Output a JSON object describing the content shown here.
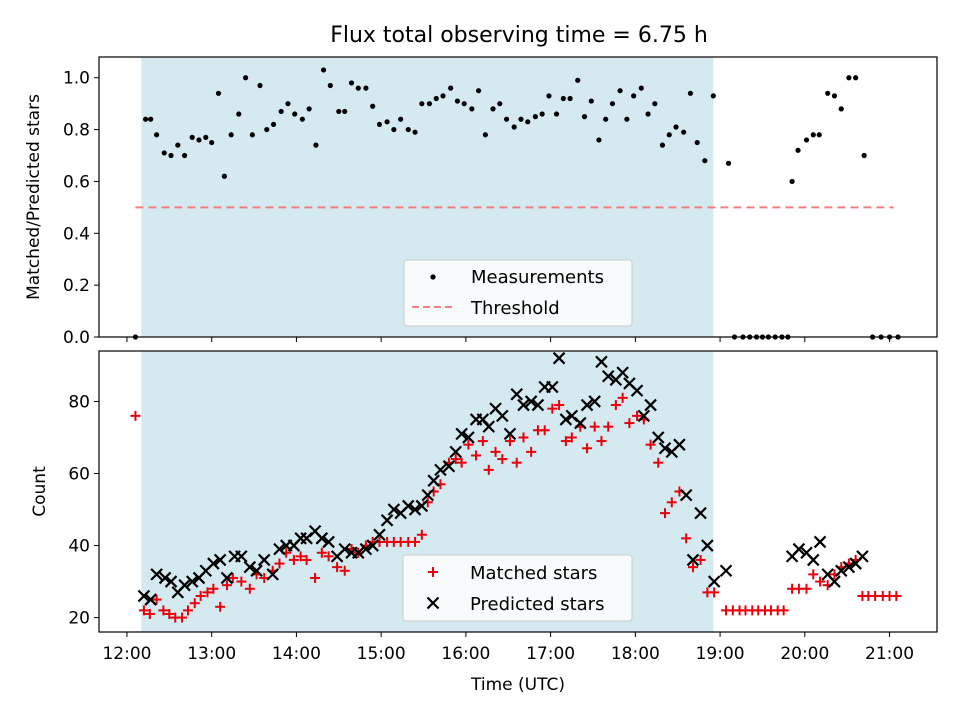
{
  "title": "Flux total observing time = 6.75 h",
  "colors": {
    "shade": "#d4eaf0",
    "measurement": "#000000",
    "threshold": "#f08080",
    "matched": "#e8000b",
    "predicted": "#000000"
  },
  "chart_data": [
    {
      "type": "scatter",
      "name": "ratio-panel",
      "ylabel": "Matched/Predicted stars",
      "ylim": [
        0,
        1.08
      ],
      "yticks": [
        0.0,
        0.2,
        0.4,
        0.6,
        0.8,
        1.0
      ],
      "ytick_labels": [
        "0.0",
        "0.2",
        "0.4",
        "0.6",
        "0.8",
        "1.0"
      ],
      "observing_window": [
        12.17,
        18.92
      ],
      "threshold": {
        "value": 0.5,
        "x_range": [
          12.1,
          21.05
        ]
      },
      "legend": {
        "position": "lower-center",
        "entries": [
          "Measurements",
          "Threshold"
        ]
      },
      "series": [
        {
          "name": "Measurements",
          "marker": "dot",
          "x": [
            12.1,
            12.22,
            12.28,
            12.35,
            12.44,
            12.52,
            12.6,
            12.68,
            12.77,
            12.85,
            12.93,
            13.0,
            13.08,
            13.15,
            13.23,
            13.32,
            13.4,
            13.48,
            13.57,
            13.65,
            13.73,
            13.82,
            13.9,
            13.98,
            14.07,
            14.15,
            14.23,
            14.32,
            14.4,
            14.5,
            14.57,
            14.65,
            14.73,
            14.82,
            14.9,
            14.98,
            15.07,
            15.15,
            15.23,
            15.32,
            15.4,
            15.48,
            15.57,
            15.65,
            15.73,
            15.82,
            15.9,
            15.98,
            16.07,
            16.15,
            16.23,
            16.32,
            16.4,
            16.48,
            16.57,
            16.65,
            16.73,
            16.82,
            16.9,
            16.98,
            17.07,
            17.15,
            17.23,
            17.32,
            17.4,
            17.48,
            17.57,
            17.65,
            17.73,
            17.82,
            17.9,
            17.98,
            18.07,
            18.15,
            18.23,
            18.32,
            18.4,
            18.48,
            18.57,
            18.65,
            18.73,
            18.82,
            18.92,
            19.1,
            19.17,
            19.27,
            19.35,
            19.43,
            19.5,
            19.57,
            19.65,
            19.73,
            19.8,
            19.85,
            19.92,
            20.02,
            20.1,
            20.17,
            20.27,
            20.35,
            20.43,
            20.52,
            20.6,
            20.7,
            20.8,
            20.9,
            21.0,
            21.1
          ],
          "y": [
            0.0,
            0.84,
            0.84,
            0.78,
            0.71,
            0.7,
            0.74,
            0.7,
            0.77,
            0.76,
            0.77,
            0.75,
            0.94,
            0.62,
            0.78,
            0.86,
            1.0,
            0.78,
            0.97,
            0.8,
            0.82,
            0.87,
            0.9,
            0.86,
            0.84,
            0.88,
            0.74,
            1.03,
            0.97,
            0.87,
            0.87,
            0.98,
            0.96,
            0.96,
            0.89,
            0.82,
            0.83,
            0.8,
            0.84,
            0.8,
            0.79,
            0.9,
            0.9,
            0.92,
            0.93,
            0.96,
            0.91,
            0.9,
            0.88,
            0.95,
            0.78,
            0.88,
            0.9,
            0.84,
            0.81,
            0.84,
            0.83,
            0.85,
            0.86,
            0.93,
            0.86,
            0.92,
            0.92,
            0.99,
            0.85,
            0.91,
            0.76,
            0.84,
            0.9,
            0.95,
            0.84,
            0.93,
            0.96,
            0.86,
            0.9,
            0.74,
            0.78,
            0.81,
            0.79,
            0.94,
            0.75,
            0.68,
            0.93,
            0.67,
            0.0,
            0.0,
            0.0,
            0.0,
            0.0,
            0.0,
            0.0,
            0.0,
            0.0,
            0.6,
            0.72,
            0.76,
            0.78,
            0.78,
            0.94,
            0.93,
            0.88,
            1.0,
            1.0,
            0.7,
            0.0,
            0.0,
            0.0,
            0.0
          ]
        },
        {
          "name": "Threshold",
          "marker": "dashed-line",
          "x": [
            12.1,
            21.05
          ],
          "y": [
            0.5,
            0.5
          ]
        }
      ]
    },
    {
      "type": "scatter",
      "name": "count-panel",
      "title": "",
      "xlabel": "Time (UTC)",
      "ylabel": "Count",
      "xlim": [
        11.67,
        21.56
      ],
      "ylim": [
        16,
        94
      ],
      "xticks": [
        12,
        13,
        14,
        15,
        16,
        17,
        18,
        19,
        20,
        21
      ],
      "xtick_labels": [
        "12:00",
        "13:00",
        "14:00",
        "15:00",
        "16:00",
        "17:00",
        "18:00",
        "19:00",
        "20:00",
        "21:00"
      ],
      "yticks": [
        20,
        40,
        60,
        80
      ],
      "ytick_labels": [
        "20",
        "40",
        "60",
        "80"
      ],
      "observing_window": [
        12.17,
        18.92
      ],
      "legend": {
        "position": "lower-center",
        "entries": [
          "Matched stars",
          "Predicted stars"
        ]
      },
      "series": [
        {
          "name": "Matched stars",
          "marker": "plus",
          "x": [
            12.1,
            12.2,
            12.27,
            12.35,
            12.43,
            12.5,
            12.57,
            12.65,
            12.72,
            12.8,
            12.87,
            12.95,
            13.02,
            13.1,
            13.18,
            13.25,
            13.35,
            13.45,
            13.53,
            13.62,
            13.72,
            13.8,
            13.88,
            13.97,
            14.05,
            14.12,
            14.22,
            14.3,
            14.38,
            14.48,
            14.57,
            14.65,
            14.73,
            14.82,
            14.9,
            14.98,
            15.07,
            15.15,
            15.23,
            15.32,
            15.4,
            15.48,
            15.55,
            15.62,
            15.7,
            15.8,
            15.88,
            15.95,
            16.03,
            16.12,
            16.2,
            16.27,
            16.35,
            16.43,
            16.52,
            16.6,
            16.68,
            16.77,
            16.85,
            16.93,
            17.02,
            17.1,
            17.18,
            17.25,
            17.35,
            17.43,
            17.52,
            17.6,
            17.68,
            17.77,
            17.85,
            17.93,
            18.02,
            18.1,
            18.18,
            18.27,
            18.35,
            18.43,
            18.52,
            18.6,
            18.68,
            18.77,
            18.85,
            18.93,
            19.07,
            19.15,
            19.23,
            19.3,
            19.38,
            19.45,
            19.53,
            19.6,
            19.68,
            19.75,
            19.85,
            19.93,
            20.02,
            20.1,
            20.18,
            20.27,
            20.35,
            20.43,
            20.52,
            20.6,
            20.68,
            20.75,
            20.83,
            20.92,
            21.0,
            21.08
          ],
          "y": [
            76,
            22,
            21,
            25,
            22,
            21,
            20,
            20,
            22,
            24,
            26,
            27,
            28,
            23,
            29,
            31,
            30,
            28,
            32,
            31,
            33,
            35,
            38,
            36,
            37,
            36,
            31,
            38,
            37,
            34,
            33,
            39,
            38,
            40,
            41,
            41,
            41,
            41,
            41,
            41,
            41,
            43,
            52,
            55,
            57,
            63,
            64,
            63,
            68,
            65,
            69,
            61,
            66,
            64,
            69,
            63,
            70,
            66,
            72,
            72,
            78,
            79,
            69,
            70,
            73,
            67,
            73,
            69,
            73,
            79,
            81,
            74,
            76,
            75,
            68,
            63,
            49,
            52,
            55,
            42,
            34,
            36,
            27,
            27,
            22,
            22,
            22,
            22,
            22,
            22,
            22,
            22,
            22,
            22,
            28,
            28,
            28,
            32,
            30,
            29,
            32,
            34,
            35,
            36,
            26,
            26,
            26,
            26,
            26,
            26
          ]
        },
        {
          "name": "Predicted stars",
          "marker": "x",
          "x": [
            12.2,
            12.28,
            12.35,
            12.45,
            12.52,
            12.6,
            12.68,
            12.77,
            12.85,
            12.93,
            13.02,
            13.1,
            13.18,
            13.27,
            13.35,
            13.45,
            13.53,
            13.62,
            13.72,
            13.8,
            13.88,
            13.97,
            14.05,
            14.12,
            14.22,
            14.3,
            14.38,
            14.48,
            14.57,
            14.65,
            14.73,
            14.82,
            14.9,
            14.98,
            15.07,
            15.15,
            15.23,
            15.32,
            15.4,
            15.48,
            15.55,
            15.62,
            15.7,
            15.8,
            15.88,
            15.95,
            16.03,
            16.12,
            16.2,
            16.27,
            16.35,
            16.43,
            16.52,
            16.6,
            16.68,
            16.77,
            16.85,
            16.93,
            17.02,
            17.1,
            17.18,
            17.25,
            17.35,
            17.43,
            17.52,
            17.6,
            17.68,
            17.77,
            17.85,
            17.93,
            18.02,
            18.1,
            18.18,
            18.27,
            18.35,
            18.43,
            18.52,
            18.6,
            18.68,
            18.77,
            18.85,
            18.93,
            19.07,
            19.85,
            19.93,
            20.02,
            20.1,
            20.18,
            20.27,
            20.35,
            20.43,
            20.52,
            20.6,
            20.68
          ],
          "y": [
            26,
            25,
            32,
            31,
            30,
            27,
            29,
            30,
            31,
            33,
            35,
            36,
            31,
            37,
            37,
            34,
            33,
            36,
            32,
            39,
            40,
            40,
            42,
            42,
            44,
            42,
            41,
            37,
            39,
            38,
            38,
            39,
            40,
            43,
            47,
            50,
            49,
            51,
            50,
            51,
            54,
            58,
            61,
            62,
            66,
            71,
            70,
            75,
            75,
            73,
            78,
            76,
            71,
            82,
            79,
            80,
            79,
            84,
            84,
            92,
            75,
            76,
            74,
            79,
            80,
            91,
            87,
            86,
            88,
            85,
            83,
            76,
            79,
            70,
            67,
            66,
            68,
            54,
            36,
            49,
            40,
            30,
            33,
            37,
            39,
            38,
            36,
            41,
            32,
            30,
            33,
            34,
            35,
            37
          ]
        }
      ]
    }
  ]
}
